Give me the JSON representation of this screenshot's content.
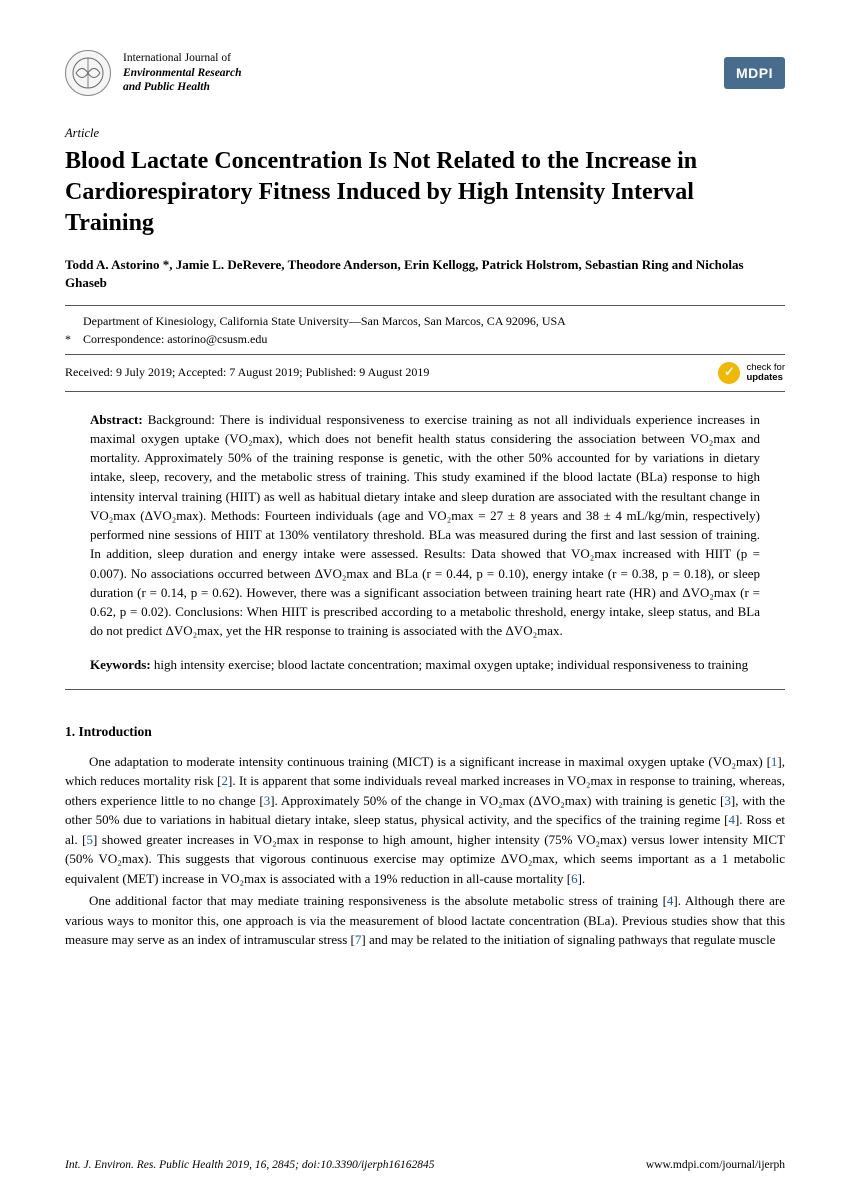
{
  "journal": {
    "line1": "International Journal of",
    "line2": "Environmental Research",
    "line3": "and Public Health",
    "publisher": "MDPI"
  },
  "article": {
    "type": "Article",
    "title": "Blood Lactate Concentration Is Not Related to the Increase in Cardiorespiratory Fitness Induced by High Intensity Interval Training",
    "authors": "Todd A. Astorino *, Jamie L. DeRevere, Theodore Anderson, Erin Kellogg, Patrick Holstrom, Sebastian Ring and Nicholas Ghaseb",
    "affiliation": "Department of Kinesiology, California State University—San Marcos, San Marcos, CA 92096, USA",
    "correspondence_marker": "*",
    "correspondence": "Correspondence: astorino@csusm.edu",
    "dates": "Received: 9 July 2019; Accepted: 7 August 2019; Published: 9 August 2019",
    "check_l1": "check for",
    "check_l2": "updates"
  },
  "abstract": {
    "label": "Abstract:",
    "text": "Background: There is individual responsiveness to exercise training as not all individuals experience increases in maximal oxygen uptake (VO₂max), which does not benefit health status considering the association between VO₂max and mortality. Approximately 50% of the training response is genetic, with the other 50% accounted for by variations in dietary intake, sleep, recovery, and the metabolic stress of training. This study examined if the blood lactate (BLa) response to high intensity interval training (HIIT) as well as habitual dietary intake and sleep duration are associated with the resultant change in VO₂max (ΔVO₂max). Methods: Fourteen individuals (age and VO₂max = 27 ± 8 years and 38 ± 4 mL/kg/min, respectively) performed nine sessions of HIIT at 130% ventilatory threshold. BLa was measured during the first and last session of training. In addition, sleep duration and energy intake were assessed. Results: Data showed that VO₂max increased with HIIT (p = 0.007). No associations occurred between ΔVO₂max and BLa (r = 0.44, p = 0.10), energy intake (r = 0.38, p = 0.18), or sleep duration (r = 0.14, p = 0.62). However, there was a significant association between training heart rate (HR) and ΔVO₂max (r = 0.62, p = 0.02). Conclusions: When HIIT is prescribed according to a metabolic threshold, energy intake, sleep status, and BLa do not predict ΔVO₂max, yet the HR response to training is associated with the ΔVO₂max."
  },
  "keywords": {
    "label": "Keywords:",
    "text": "high intensity exercise; blood lactate concentration; maximal oxygen uptake; individual responsiveness to training"
  },
  "intro": {
    "heading": "1. Introduction",
    "p1": "One adaptation to moderate intensity continuous training (MICT) is a significant increase in maximal oxygen uptake (VO₂max) [1], which reduces mortality risk [2]. It is apparent that some individuals reveal marked increases in VO₂max in response to training, whereas, others experience little to no change [3]. Approximately 50% of the change in VO₂max (ΔVO₂max) with training is genetic [3], with the other 50% due to variations in habitual dietary intake, sleep status, physical activity, and the specifics of the training regime [4]. Ross et al. [5] showed greater increases in VO₂max in response to high amount, higher intensity (75% VO₂max) versus lower intensity MICT (50% VO₂max). This suggests that vigorous continuous exercise may optimize ΔVO₂max, which seems important as a 1 metabolic equivalent (MET) increase in VO₂max is associated with a 19% reduction in all-cause mortality [6].",
    "p2": "One additional factor that may mediate training responsiveness is the absolute metabolic stress of training [4]. Although there are various ways to monitor this, one approach is via the measurement of blood lactate concentration (BLa). Previous studies show that this measure may serve as an index of intramuscular stress [7] and may be related to the initiation of signaling pathways that regulate muscle"
  },
  "footer": {
    "left": "Int. J. Environ. Res. Public Health 2019, 16, 2845; doi:10.3390/ijerph16162845",
    "right": "www.mdpi.com/journal/ijerph"
  },
  "refs": [
    "1",
    "2",
    "3",
    "4",
    "5",
    "6",
    "7"
  ]
}
